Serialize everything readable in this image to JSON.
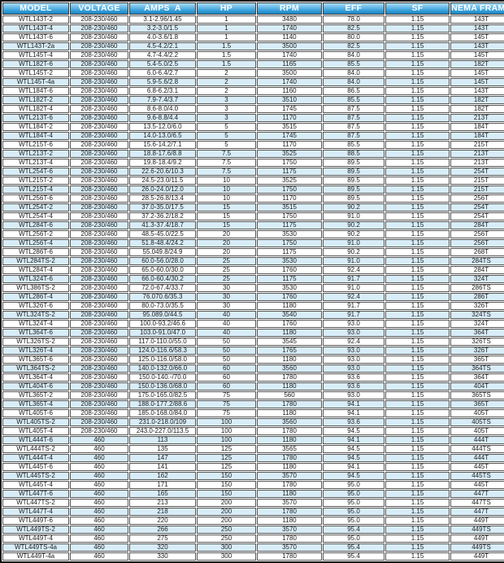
{
  "chart_data": {
    "type": "table",
    "columns": [
      "MODEL",
      "VOLTAGE",
      "AMPS  A",
      "HP",
      "RPM",
      "EFF",
      "SF",
      "NEMA FRAME"
    ],
    "rows": [
      [
        "WTL143T-2",
        "208-230/460",
        "3.1-2.96/1.45",
        "1",
        "3480",
        "78.0",
        "1.15",
        "143T"
      ],
      [
        "WTL143T-4",
        "208-230/460",
        "3.2-3.0/1.5",
        "1",
        "1740",
        "82.5",
        "1.15",
        "143T"
      ],
      [
        "WTL143T-6",
        "208-230/460",
        "4.0-3.6/1.8",
        "1",
        "1140",
        "80.0",
        "1.15",
        "145T"
      ],
      [
        "WTL143T-2a",
        "208-230/460",
        "4.5-4.2/2.1",
        "1.5",
        "3500",
        "82.5",
        "1.15",
        "143T"
      ],
      [
        "WTL145T-4",
        "208-230/460",
        "4.7-4.4/2.2",
        "1.5",
        "1740",
        "84.0",
        "1.15",
        "145T"
      ],
      [
        "WTL182T-6",
        "208-230/460",
        "5.4-5.0/2.5",
        "1.5",
        "1165",
        "85.5",
        "1.15",
        "182T"
      ],
      [
        "WTL145T-2",
        "208-230/460",
        "6.0-6.4/2.7",
        "2",
        "3500",
        "84.0",
        "1.15",
        "145T"
      ],
      [
        "WTL145T-4a",
        "208-230/460",
        "5.9-5.6/2.8",
        "2",
        "1740",
        "84.0",
        "1.15",
        "145T"
      ],
      [
        "WTL184T-6",
        "208-230/460",
        "6.8-6.2/3.1",
        "2",
        "1160",
        "86.5",
        "1.15",
        "143T"
      ],
      [
        "WTL182T-2",
        "208-230/460",
        "7.9-7.4/3.7",
        "3",
        "3510",
        "85.5",
        "1.15",
        "182T"
      ],
      [
        "WTL182T-4",
        "208-230/460",
        "8.6-8.0/4.0",
        "3",
        "1745",
        "87.5",
        "1.15",
        "182T"
      ],
      [
        "WTL213T-6",
        "208-230/460",
        "9.6-8.8/4.4",
        "3",
        "1170",
        "87.5",
        "1.15",
        "213T"
      ],
      [
        "WTL184T-2",
        "208-230/460",
        "13.5-12.0/6.0",
        "5",
        "3515",
        "87.5",
        "1.15",
        "184T"
      ],
      [
        "WTL184T-4",
        "208-230/460",
        "14.0-13.0/6.5",
        "5",
        "1745",
        "87.5",
        "1.15",
        "184T"
      ],
      [
        "WTL215T-6",
        "208-230/460",
        "15.6-14.2/7.1",
        "5",
        "1170",
        "85.5",
        "1.15",
        "215T"
      ],
      [
        "WTL213T-2",
        "208-230/460",
        "18.8-17.6/8.8",
        "7.5",
        "3525",
        "88.5",
        "1.15",
        "213T"
      ],
      [
        "WTL213T-4",
        "208-230/460",
        "19.8-18.4/9.2",
        "7.5",
        "1750",
        "89.5",
        "1.15",
        "213T"
      ],
      [
        "WTL254T-6",
        "208-230/460",
        "22.6-20.6/10.3",
        "7.5",
        "1175",
        "89.5",
        "1.15",
        "254T"
      ],
      [
        "WTL215T-2",
        "208-230/460",
        "24.5-23.0/11.5",
        "10",
        "3525",
        "89.5",
        "1.15",
        "215T"
      ],
      [
        "WTL215T-4",
        "208-230/460",
        "26.0-24.0/12.0",
        "10",
        "1750",
        "89.5",
        "1.15",
        "215T"
      ],
      [
        "WTL256T-6",
        "208-230/460",
        "28.5-26.8/13.4",
        "10",
        "1170",
        "89.5",
        "1.15",
        "256T"
      ],
      [
        "WTL254T-2",
        "208-230/460",
        "37.0-35.0/17.5",
        "15",
        "3515",
        "90.2",
        "1.15",
        "254T"
      ],
      [
        "WTL254T-4",
        "208-230/460",
        "37.2-36.2/18.2",
        "15",
        "1750",
        "91.0",
        "1.15",
        "254T"
      ],
      [
        "WTL284T-6",
        "208-230/460",
        "41.3-37.4/18.7",
        "15",
        "1175",
        "90.2",
        "1.15",
        "284T"
      ],
      [
        "WTL256T-2",
        "208-230/460",
        "48.5-45.0/22.5",
        "20",
        "3530",
        "90.2",
        "1.15",
        "256T"
      ],
      [
        "WTL256T-4",
        "208-230/460",
        "51.8-48.4/24.2",
        "20",
        "1750",
        "91.0",
        "1.15",
        "256T"
      ],
      [
        "WTL286T-6",
        "208-230/460",
        "55.049.8/24.9",
        "20",
        "1175",
        "90.2",
        "1.15",
        "268T"
      ],
      [
        "WTL284TS-2",
        "208-230/460",
        "60.0-56.0/28.0",
        "25",
        "3530",
        "91.0",
        "1.15",
        "284TS"
      ],
      [
        "WTL284T-4",
        "208-230/460",
        "65.0-60.0/30.0",
        "25",
        "1760",
        "92.4",
        "1.15",
        "284T"
      ],
      [
        "WTL324T-6",
        "208-230/460",
        "66.0-60.4/30.2",
        "25",
        "1175",
        "91.7",
        "1.15",
        "324T"
      ],
      [
        "WTL386TS-2",
        "208-230/460",
        "72.0-67.4/33.7",
        "30",
        "3530",
        "91.0",
        "1.15",
        "286TS"
      ],
      [
        "WTL286T-4",
        "208-230/460",
        "76.070.6/35.3",
        "30",
        "1760",
        "92.4",
        "1.15",
        "286T"
      ],
      [
        "WTL326T-6",
        "208-230/460",
        "80.0-73.0/35.5",
        "30",
        "1180",
        "91.7",
        "1.15",
        "326T"
      ],
      [
        "WTL324TS-2",
        "208-230/460",
        "95.089.0/44.5",
        "40",
        "3540",
        "91.7",
        "1.15",
        "324TS"
      ],
      [
        "WTL324T-4",
        "208-230/460",
        "100.0-93.2/46.6",
        "40",
        "1760",
        "93.0",
        "1.15",
        "324T"
      ],
      [
        "WTL364T-6",
        "208-230/460",
        "103.0-91.0/47.0",
        "40",
        "1180",
        "93.0",
        "1.15",
        "364T"
      ],
      [
        "WTL326TS-2",
        "208-230/460",
        "117.0-110.0/55.0",
        "50",
        "3545",
        "92.4",
        "1.15",
        "326TS"
      ],
      [
        "WTL326T-4",
        "208-230/460",
        "124.0-116.6/58.3",
        "50",
        "1765",
        "93.0",
        "1.15",
        "326T"
      ],
      [
        "WTL365T-6",
        "208-230/460",
        "125.0-116.0/58.0",
        "50",
        "1180",
        "93.0",
        "1.15",
        "365T"
      ],
      [
        "WTL364TS-2",
        "208-230/460",
        "140.0-132.0/66.0",
        "60",
        "3560",
        "93.0",
        "1.15",
        "364TS"
      ],
      [
        "WTL364T-4",
        "208-230/460",
        "150.0-140.-/70.0",
        "60",
        "1780",
        "93.6",
        "1.15",
        "364T"
      ],
      [
        "WTL404T-6",
        "208-230/460",
        "150.0-136.0/68.0",
        "60",
        "1180",
        "93.6",
        "1.15",
        "404T"
      ],
      [
        "WTL365T-2",
        "208-230/460",
        "175.0-165.0/82.5",
        "75",
        "560",
        "93.0",
        "1.15",
        "365TS"
      ],
      [
        "WTL365T-4",
        "208-230/460",
        "188.0-177.2/88.6",
        "75",
        "1780",
        "94.1",
        "1.15",
        "365T"
      ],
      [
        "WTL405T-6",
        "208-230/460",
        "185.0-168.0/84.0",
        "75",
        "1180",
        "94.1",
        "1.15",
        "405T"
      ],
      [
        "WTL405TS-2",
        "208-230/460",
        "231.0-218.0/109",
        "100",
        "3560",
        "93.6",
        "1.15",
        "405TS"
      ],
      [
        "WTL405T-4",
        "208-230/460",
        "243.0-227.0/113.5",
        "100",
        "1780",
        "94.5",
        "1.15",
        "405T"
      ],
      [
        "WTL444T-6",
        "460",
        "113",
        "100",
        "1180",
        "94.1",
        "1.15",
        "444T"
      ],
      [
        "WTL444TS-2",
        "460",
        "135",
        "125",
        "3565",
        "94.5",
        "1.15",
        "444TS"
      ],
      [
        "WTL444T-4",
        "460",
        "147",
        "125",
        "1780",
        "94.5",
        "1.15",
        "444T"
      ],
      [
        "WTL445T-6",
        "460",
        "141",
        "125",
        "1180",
        "94.1",
        "1.15",
        "445T"
      ],
      [
        "WTL445TS-2",
        "460",
        "162",
        "150",
        "3570",
        "94.5",
        "1.15",
        "445TS"
      ],
      [
        "WTL445T-4",
        "460",
        "171",
        "150",
        "1780",
        "95.0",
        "1.15",
        "445T"
      ],
      [
        "WTL447T-6",
        "460",
        "165",
        "150",
        "1180",
        "95.0",
        "1.15",
        "447T"
      ],
      [
        "WTL447TS-2",
        "460",
        "213",
        "200",
        "3570",
        "95.0",
        "1.15",
        "447TS"
      ],
      [
        "WTL447T-4",
        "460",
        "218",
        "200",
        "1780",
        "95.0",
        "1.15",
        "447T"
      ],
      [
        "WTL449T-6",
        "460",
        "220",
        "200",
        "1180",
        "95.0",
        "1.15",
        "449T"
      ],
      [
        "WTL449TS-2",
        "460",
        "266",
        "250",
        "3570",
        "95.4",
        "1.15",
        "449TS"
      ],
      [
        "WTL449T-4",
        "460",
        "275",
        "250",
        "1780",
        "95.0",
        "1.15",
        "449T"
      ],
      [
        "WTL449TS-4a",
        "460",
        "320",
        "300",
        "3570",
        "95.4",
        "1.15",
        "449TS"
      ],
      [
        "WTL449T-4a",
        "460",
        "330",
        "300",
        "1780",
        "95.4",
        "1.15",
        "449T"
      ]
    ]
  },
  "colors": {
    "header_blue_top": "#abdcf4",
    "header_blue_bottom": "#2089c6",
    "header_text": "#ffffff",
    "row_alt_blue": "#d8edf8",
    "grid_border": "#565656",
    "outer_border": "#161616"
  }
}
